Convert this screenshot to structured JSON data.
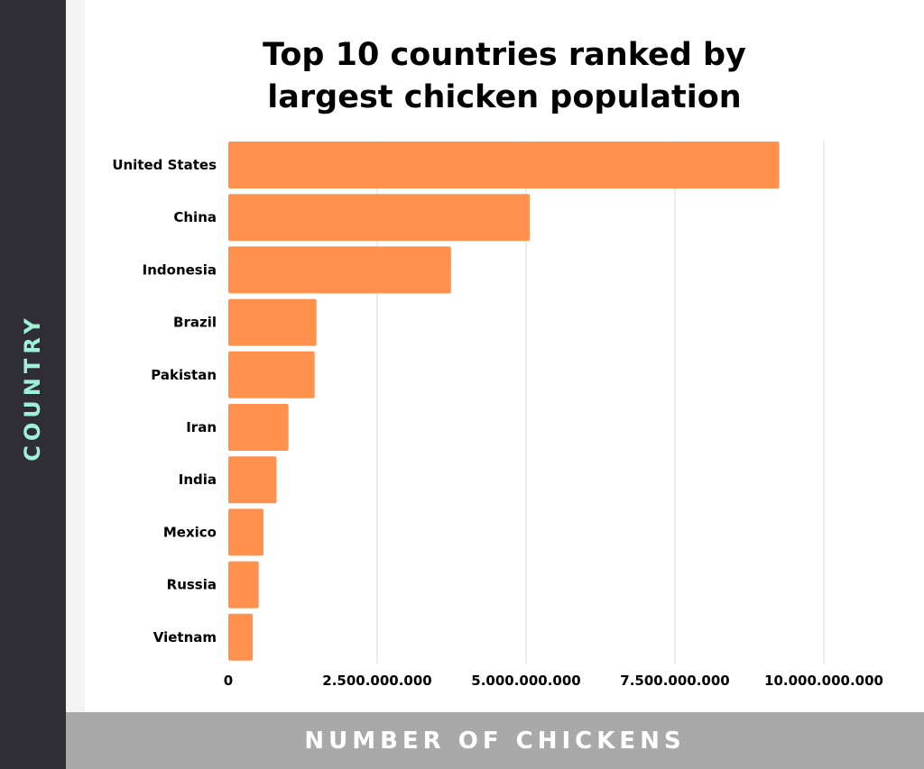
{
  "y_axis_title": "COUNTRY",
  "x_axis_title": "NUMBER OF CHICKENS",
  "colors": {
    "bar": "#ff914d",
    "left_panel": "#2f2d35",
    "y_axis_title": "#9ff0d6",
    "bottom_bar": "#a9a9a9",
    "grid": "#d9d9d9"
  },
  "chart_data": {
    "type": "bar",
    "orientation": "horizontal",
    "title": [
      "Top 10 countries ranked by",
      "largest chicken population"
    ],
    "xlabel": "NUMBER OF CHICKENS",
    "ylabel": "COUNTRY",
    "categories": [
      "United States",
      "China",
      "Indonesia",
      "Brazil",
      "Pakistan",
      "Iran",
      "India",
      "Mexico",
      "Russia",
      "Vietnam"
    ],
    "values": [
      9250000000,
      5060000000,
      3740000000,
      1480000000,
      1450000000,
      1010000000,
      810000000,
      590000000,
      510000000,
      410000000
    ],
    "xlim": [
      0,
      10000000000
    ],
    "xticks": [
      0,
      2500000000,
      5000000000,
      7500000000,
      10000000000
    ],
    "xtick_labels": [
      "0",
      "2.500.000.000",
      "5.000.000.000",
      "7.500.000.000",
      "10.000.000.000"
    ],
    "grid": true,
    "legend": "none"
  }
}
